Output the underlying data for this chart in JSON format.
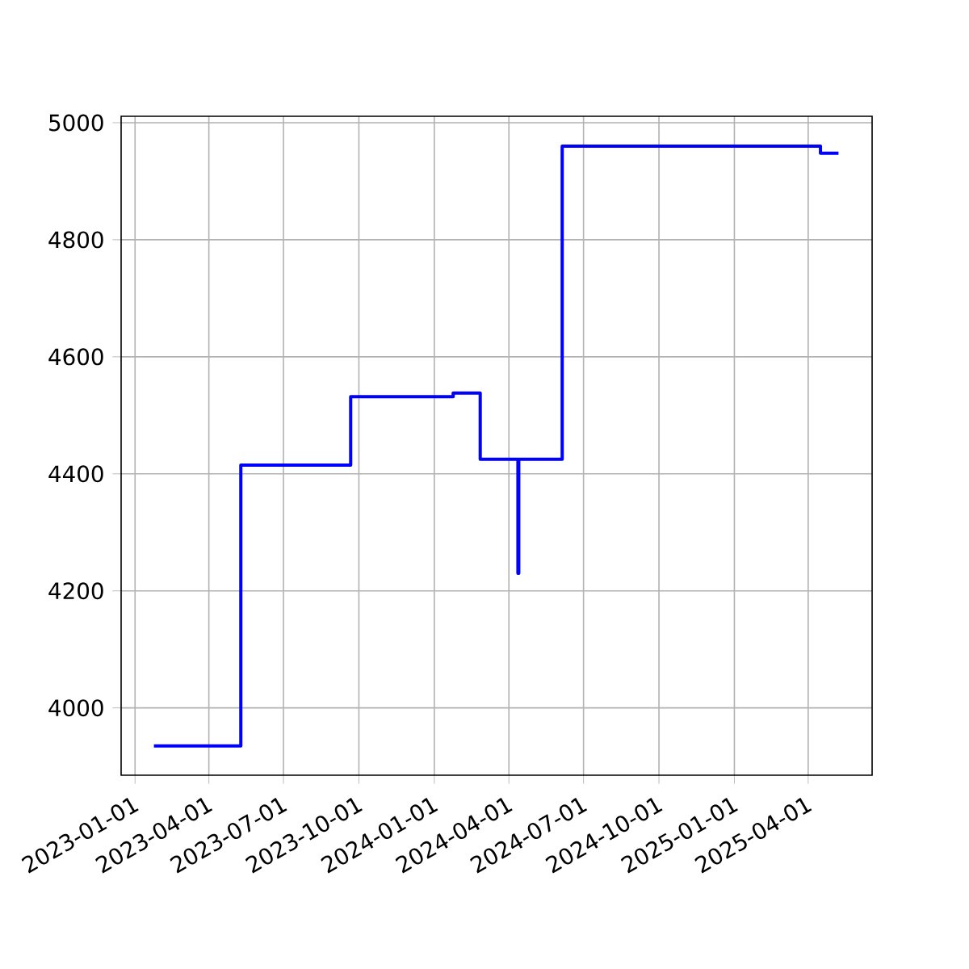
{
  "chart_data": {
    "type": "step",
    "x": [
      "2023-01-24",
      "2023-05-10",
      "2023-09-21",
      "2024-01-24",
      "2024-02-26",
      "2024-04-12",
      "2024-04-13",
      "2024-06-05",
      "2025-04-16",
      "2025-05-08"
    ],
    "values": [
      3935,
      4415,
      4532,
      4538,
      4425,
      4230,
      4425,
      4960,
      4948,
      4948
    ],
    "color": "#0000ff",
    "xlim": [
      "2022-12-15",
      "2025-06-18"
    ],
    "ylim": [
      3885,
      5011
    ],
    "xticks": [
      "2023-01-01",
      "2023-04-01",
      "2023-07-01",
      "2023-10-01",
      "2024-01-01",
      "2024-04-01",
      "2024-07-01",
      "2024-10-01",
      "2025-01-01",
      "2025-04-01"
    ],
    "yticks": [
      4000,
      4200,
      4400,
      4600,
      4800,
      5000
    ],
    "grid": true
  }
}
